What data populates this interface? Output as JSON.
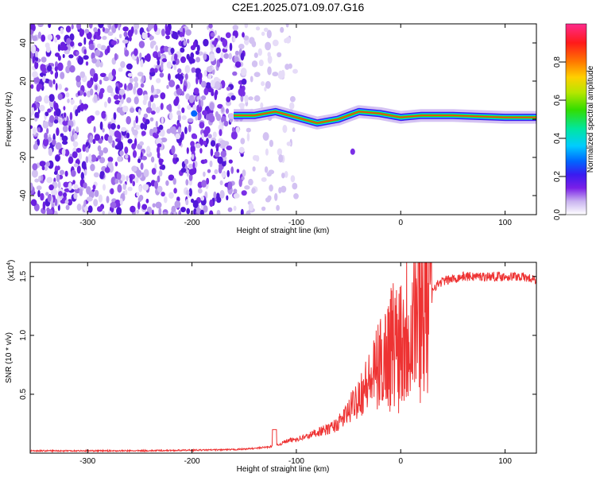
{
  "title": "C2E1.2025.071.09.07.G16",
  "chart_data": [
    {
      "type": "heatmap",
      "xlabel": "Height of straight line (km)",
      "ylabel": "Frequency (Hz)",
      "xlim": [
        -355,
        130
      ],
      "ylim": [
        -50,
        50
      ],
      "xticks": [
        -300,
        -200,
        -100,
        0,
        100
      ],
      "yticks": [
        -40,
        -20,
        0,
        20,
        40
      ],
      "colorbar": {
        "label": "Normalized spectral amplitude",
        "range": [
          0,
          1
        ],
        "ticks": [
          "0.0",
          "0.2",
          "0.4",
          "0.6",
          "0.8"
        ],
        "colors": [
          "#ffffff",
          "#c9b3f0",
          "#7a1fe8",
          "#3a1bf0",
          "#0066ff",
          "#00ccff",
          "#00e6a0",
          "#33dd00",
          "#b6e600",
          "#ffd000",
          "#ff7a00",
          "#ff1a1a",
          "#ff2a8c"
        ]
      },
      "noise_region_x": [
        -355,
        -150
      ],
      "signal_track": [
        {
          "x": -160,
          "y": 2
        },
        {
          "x": -140,
          "y": 2
        },
        {
          "x": -120,
          "y": 4
        },
        {
          "x": -100,
          "y": 1
        },
        {
          "x": -80,
          "y": -2
        },
        {
          "x": -60,
          "y": 0
        },
        {
          "x": -40,
          "y": 4
        },
        {
          "x": -20,
          "y": 3
        },
        {
          "x": 0,
          "y": 1
        },
        {
          "x": 20,
          "y": 2
        },
        {
          "x": 50,
          "y": 2
        },
        {
          "x": 100,
          "y": 1
        },
        {
          "x": 130,
          "y": 1
        }
      ]
    },
    {
      "type": "line",
      "xlabel": "Height of straight line (km)",
      "ylabel": "SNR (10 * v/v)",
      "scale_label": "(x10",
      "scale_exp": "4",
      "scale_close": ")",
      "xlim": [
        -355,
        130
      ],
      "ylim": [
        0,
        1.62
      ],
      "xticks": [
        -300,
        -200,
        -100,
        0,
        100
      ],
      "yticks": [
        "0.5",
        "1.0",
        "1.5"
      ],
      "line_color": "#ee3333",
      "series": [
        {
          "x": [
            -355,
            -300,
            -250,
            -200,
            -160,
            -140,
            -120,
            -110,
            -100,
            -90,
            -80,
            -70,
            -60,
            -50,
            -40,
            -30,
            -20,
            -10,
            0,
            10,
            20,
            30,
            40,
            60,
            80,
            100,
            115,
            130
          ],
          "y": [
            0.02,
            0.02,
            0.02,
            0.025,
            0.03,
            0.04,
            0.06,
            0.1,
            0.12,
            0.14,
            0.18,
            0.2,
            0.25,
            0.35,
            0.5,
            0.6,
            0.75,
            0.9,
            1.0,
            1.15,
            1.3,
            1.4,
            1.46,
            1.5,
            1.5,
            1.5,
            1.5,
            1.47
          ]
        }
      ]
    }
  ]
}
